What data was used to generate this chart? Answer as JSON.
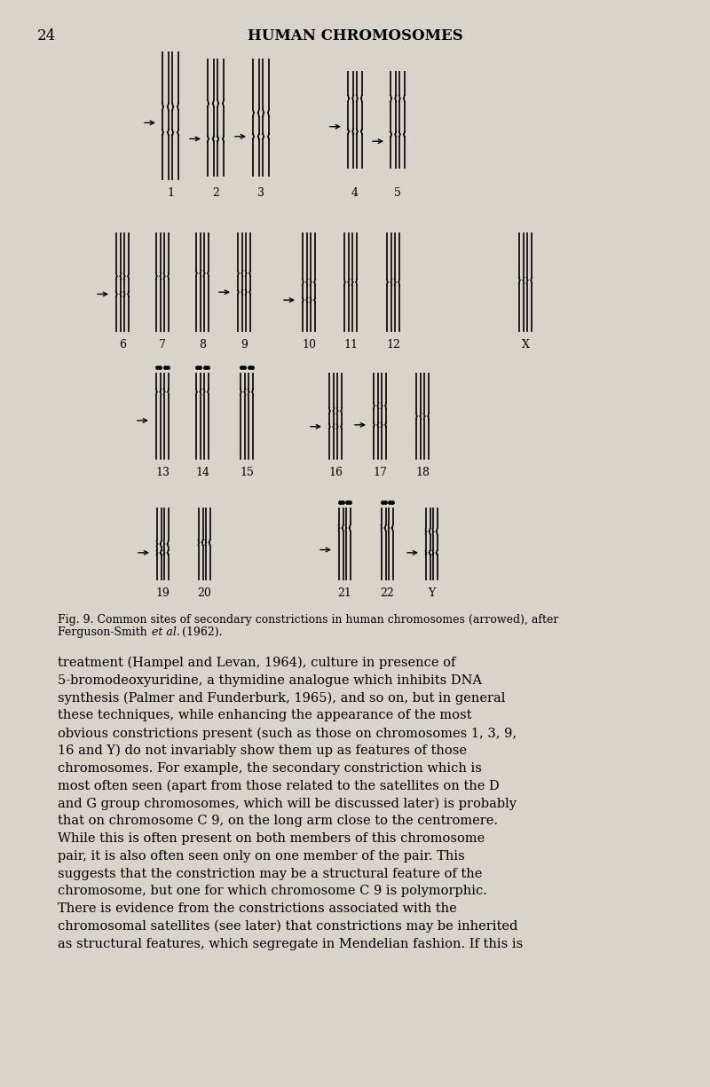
{
  "bg_color": "#d8d4cb",
  "page_number": "24",
  "header": "HUMAN CHROMOSOMES",
  "body_text": "treatment (Hampel and Levan, 1964), culture in presence of\n5-bromodeoxyuridine, a thymidine analogue which inhibits DNA\nsynthesis (Palmer and Funderburk, 1965), and so on, but in general\nthese techniques, while enhancing the appearance of the most\nobvious constrictions present (such as those on chromosomes 1, 3, 9,\n16 and Y) do not invariably show them up as features of those\nchromosomes. For example, the secondary constriction which is\nmost often seen (apart from those related to the satellites on the D\nand G group chromosomes, which will be discussed later) is probably\nthat on chromosome C 9, on the long arm close to the centromere.\nWhile this is often present on both members of this chromosome\npair, it is also often seen only on one member of the pair. This\nsuggests that the constriction may be a structural feature of the\nchromosome, but one for which chromosome C 9 is polymorphic.\nThere is evidence from the constrictions associated with the\nchromosomal satellites (see later) that constrictions may be inherited\nas structural features, which segregate in Mendelian fashion. If this is"
}
